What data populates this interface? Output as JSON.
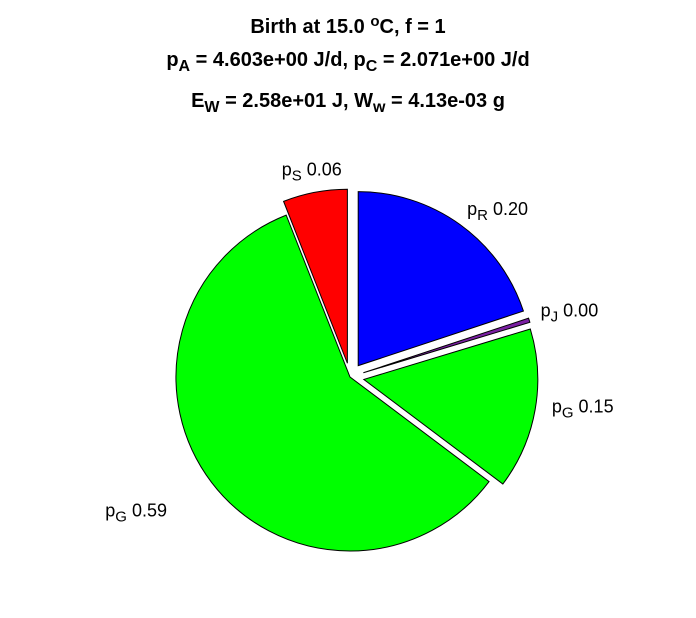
{
  "chart_data": {
    "type": "pie",
    "title_lines": [
      {
        "segments": [
          {
            "t": "Birth at 15.0 "
          },
          {
            "t": "o",
            "sup": true
          },
          {
            "t": "C, f = 1"
          }
        ]
      },
      {
        "segments": [
          {
            "t": "p"
          },
          {
            "t": "A",
            "sub": true
          },
          {
            "t": " = 4.603e+00 J/d, p"
          },
          {
            "t": "C",
            "sub": true
          },
          {
            "t": " = 2.071e+00 J/d"
          }
        ]
      },
      {
        "segments": [
          {
            "t": "E"
          },
          {
            "t": "W",
            "sub": true
          },
          {
            "t": " = 2.58e+01 J, W"
          },
          {
            "t": "w",
            "sub": true
          },
          {
            "t": " = 4.13e-03 g"
          }
        ]
      }
    ],
    "slices": [
      {
        "sym": "p",
        "sub": "R",
        "value_label": "0.20",
        "value": 0.2,
        "color": "#0000ff",
        "explode": true
      },
      {
        "sym": "p",
        "sub": "J",
        "value_label": "0.00",
        "value": 0.004,
        "color": "#7a1fa2",
        "explode": true
      },
      {
        "sym": "p",
        "sub": "G",
        "value_label": "0.15",
        "value": 0.15,
        "color": "#00ff00",
        "explode": true
      },
      {
        "sym": "p",
        "sub": "G",
        "value_label": "0.59",
        "value": 0.59,
        "color": "#00ff00",
        "explode": false
      },
      {
        "sym": "p",
        "sub": "S",
        "value_label": "0.06",
        "value": 0.06,
        "color": "#ff0000",
        "explode": true
      }
    ]
  }
}
